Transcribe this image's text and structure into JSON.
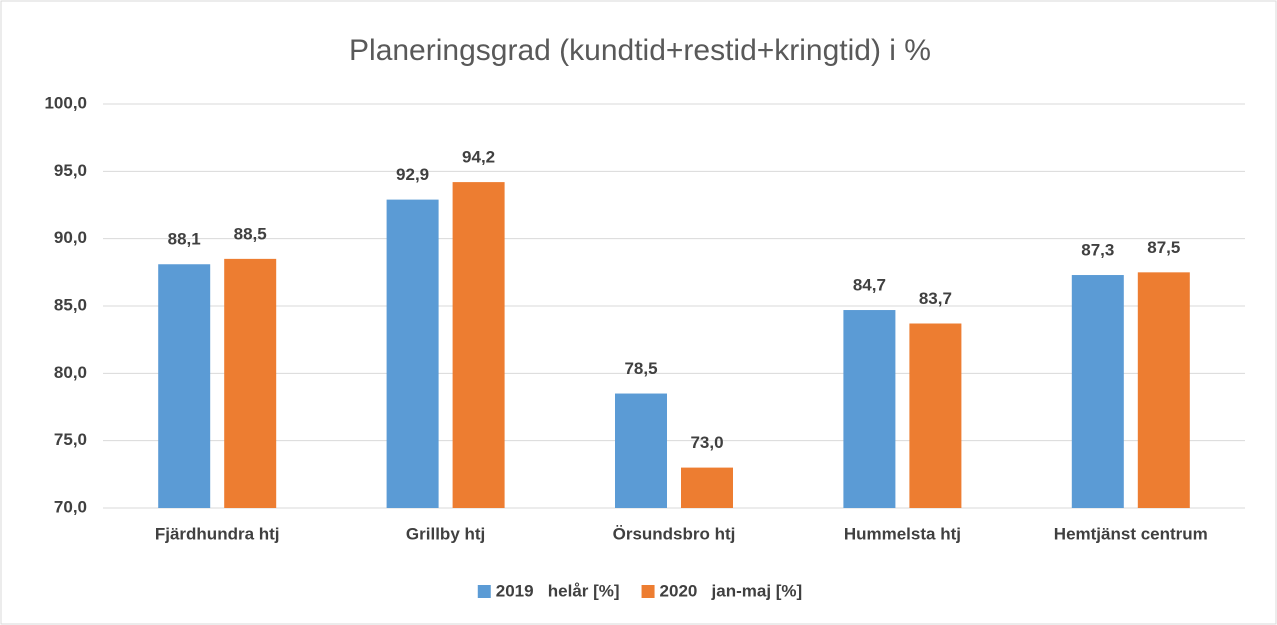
{
  "chart_data": {
    "type": "bar",
    "title": "Planeringsgrad (kundtid+restid+kringtid) i %",
    "categories": [
      "Fjärdhundra htj",
      "Grillby htj",
      "Örsundsbro htj",
      "Hummelsta htj",
      "Hemtjänst centrum"
    ],
    "series": [
      {
        "name": "2019   helår [%]",
        "color": "#5b9bd5",
        "values": [
          88.1,
          92.9,
          78.5,
          84.7,
          87.3
        ],
        "value_labels": [
          "88,1",
          "92,9",
          "78,5",
          "84,7",
          "87,3"
        ]
      },
      {
        "name": "2020   jan-maj [%]",
        "color": "#ed7d31",
        "values": [
          88.5,
          94.2,
          73.0,
          83.7,
          87.5
        ],
        "value_labels": [
          "88,5",
          "94,2",
          "73,0",
          "83,7",
          "87,5"
        ]
      }
    ],
    "ylim": [
      70,
      100
    ],
    "yticks": [
      {
        "value": 70,
        "label": "70,0"
      },
      {
        "value": 75,
        "label": "75,0"
      },
      {
        "value": 80,
        "label": "80,0"
      },
      {
        "value": 85,
        "label": "85,0"
      },
      {
        "value": 90,
        "label": "90,0"
      },
      {
        "value": 95,
        "label": "95,0"
      },
      {
        "value": 100,
        "label": "100,0"
      }
    ],
    "grid": true,
    "legend": "bottom"
  }
}
